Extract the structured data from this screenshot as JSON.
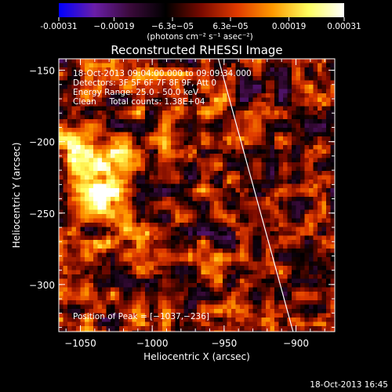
{
  "chart_data": {
    "type": "heatmap",
    "title": "Reconstructed RHESSI Image",
    "xlabel": "Heliocentric X (arcsec)",
    "ylabel": "Heliocentric Y (arcsec)",
    "xlim": [
      -1065,
      -873
    ],
    "ylim": [
      -333,
      -142
    ],
    "x_ticks": [
      -1050,
      -1000,
      -950,
      -900
    ],
    "x_tick_labels": [
      "−1050",
      "−1000",
      "−950",
      "−900"
    ],
    "y_ticks": [
      -150,
      -200,
      -250,
      -300
    ],
    "y_tick_labels": [
      "−150",
      "−200",
      "−250",
      "−300"
    ],
    "colorbar": {
      "range": [
        -0.00031,
        0.00031
      ],
      "ticks": [
        -0.00031,
        -0.00019,
        -6.3e-05,
        6.3e-05,
        0.00019,
        0.00031
      ],
      "tick_labels": [
        "-0.00031",
        "−0.00019",
        "−6.3e−05",
        "6.3e−05",
        "0.00019",
        "0.00031"
      ],
      "units_text": "(photons cm⁻² s⁻¹ asec⁻²)",
      "colors": [
        "#0000ff",
        "#6a1ea8",
        "#3a0a3a",
        "#000000",
        "#7a0a00",
        "#e03a00",
        "#ff9a00",
        "#ffff60",
        "#ffffff"
      ]
    },
    "info_lines": [
      "18-Oct-2013 09:04:00.000 to 09:09:34.000",
      "Detectors: 3F 5F 6F 7F 8F 9F, Att 0",
      "Energy Range: 25.0 - 50.0 keV",
      "Clean     Total counts: 1.38E+04"
    ],
    "peak_text": "Position of Peak = [−1037,−236]",
    "peak_position": [
      -1037,
      -236
    ],
    "limb_line": [
      [
        -954,
        -142
      ],
      [
        -902,
        -333
      ]
    ],
    "grid": false
  },
  "timestamp": "18-Oct-2013 16:45"
}
